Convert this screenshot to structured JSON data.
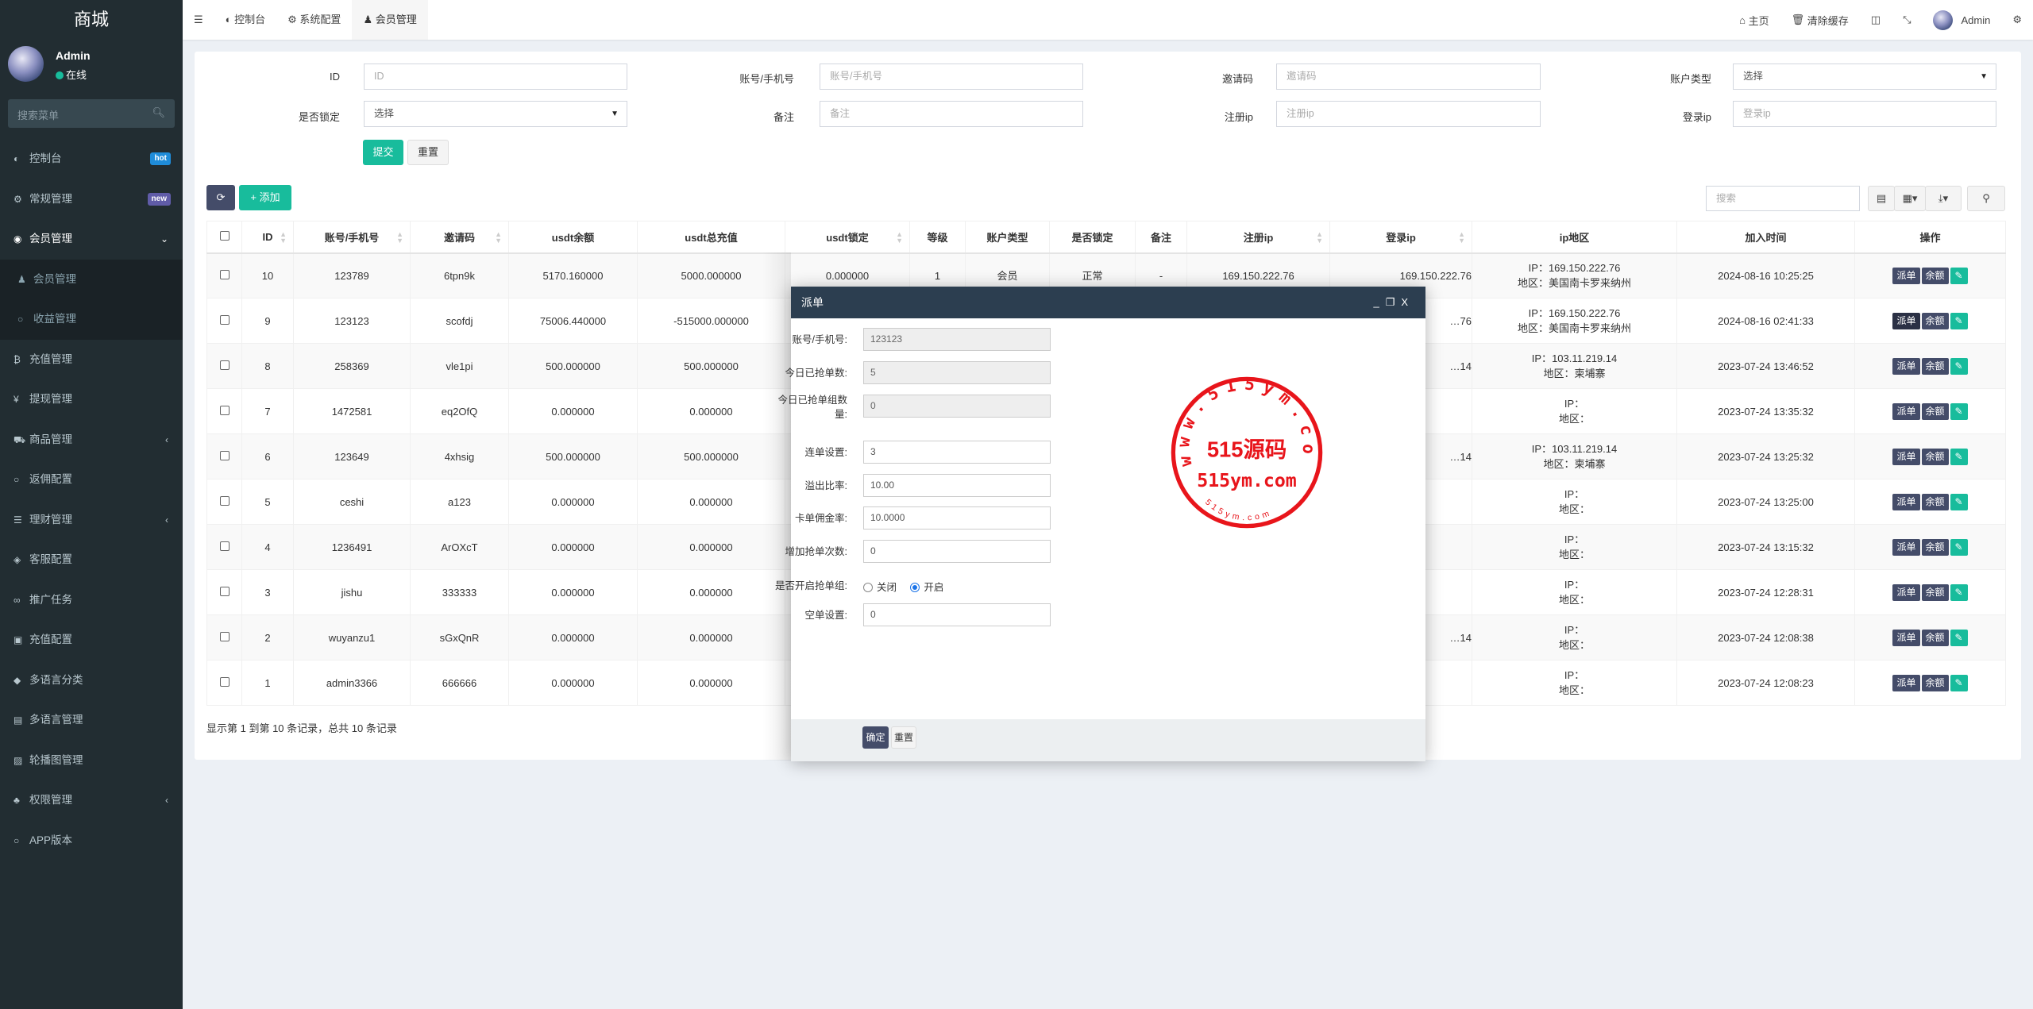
{
  "sidebar": {
    "logo": "商城",
    "user": {
      "name": "Admin",
      "status": "在线"
    },
    "search_placeholder": "搜索菜单",
    "items": [
      {
        "label": "控制台",
        "icon": "dashboard-icon",
        "badge": "hot",
        "badge_color": "#1f8cd9"
      },
      {
        "label": "常规管理",
        "icon": "cogs-icon",
        "badge": "new",
        "badge_color": "#605ca8"
      },
      {
        "label": "会员管理",
        "icon": "user-circle-icon",
        "open": true
      },
      {
        "label": "会员管理",
        "icon": "user-icon",
        "active": true,
        "sub": true
      },
      {
        "label": "收益管理",
        "icon": "circle-icon",
        "sub": true
      },
      {
        "label": "充值管理",
        "icon": "bitcoin-icon"
      },
      {
        "label": "提现管理",
        "icon": "yen-icon"
      },
      {
        "label": "商品管理",
        "icon": "cart-icon",
        "arrow": true
      },
      {
        "label": "返佣配置",
        "icon": "circle-icon"
      },
      {
        "label": "理财管理",
        "icon": "list-icon",
        "arrow": true
      },
      {
        "label": "客服配置",
        "icon": "telegram-icon"
      },
      {
        "label": "推广任务",
        "icon": "link-icon"
      },
      {
        "label": "充值配置",
        "icon": "cc-icon"
      },
      {
        "label": "多语言分类",
        "icon": "tag-icon"
      },
      {
        "label": "多语言管理",
        "icon": "language-icon"
      },
      {
        "label": "轮播图管理",
        "icon": "image-icon"
      },
      {
        "label": "权限管理",
        "icon": "group-icon",
        "arrow": true
      },
      {
        "label": "APP版本",
        "icon": "circle-icon"
      }
    ]
  },
  "header": {
    "tabs": [
      {
        "label": "控制台",
        "icon": "dashboard-icon"
      },
      {
        "label": "系统配置",
        "icon": "gear-icon"
      },
      {
        "label": "会员管理",
        "icon": "user-icon",
        "active": true
      }
    ],
    "home": "主页",
    "clear_cache": "清除缓存",
    "user": "Admin"
  },
  "filters": {
    "id": {
      "label": "ID",
      "placeholder": "ID"
    },
    "account": {
      "label": "账号/手机号",
      "placeholder": "账号/手机号"
    },
    "invite": {
      "label": "邀请码",
      "placeholder": "邀请码"
    },
    "acct_type": {
      "label": "账户类型",
      "value": "选择"
    },
    "locked": {
      "label": "是否锁定",
      "value": "选择"
    },
    "remark": {
      "label": "备注",
      "placeholder": "备注"
    },
    "reg_ip": {
      "label": "注册ip",
      "placeholder": "注册ip"
    },
    "login_ip": {
      "label": "登录ip",
      "placeholder": "登录ip"
    },
    "submit": "提交",
    "reset": "重置"
  },
  "toolbar": {
    "add": "添加",
    "search_placeholder": "搜索"
  },
  "table": {
    "columns": [
      "ID",
      "账号/手机号",
      "邀请码",
      "usdt余额",
      "usdt总充值",
      "usdt锁定",
      "等级",
      "账户类型",
      "是否锁定",
      "备注",
      "注册ip",
      "登录ip",
      "ip地区",
      "加入时间",
      "操作"
    ],
    "ip_prefix": "IP：",
    "region_prefix": "地区：",
    "actions": {
      "dispatch": "派单",
      "balance": "余额"
    },
    "rows": [
      {
        "id": "10",
        "account": "123789",
        "invite": "6tpn9k",
        "balance": "5170.160000",
        "recharge": "5000.000000",
        "locked_amt": "0.000000",
        "level": "1",
        "type": "会员",
        "locked": "正常",
        "remark": "-",
        "reg_ip": "169.150.222.76",
        "login_ip": "169.150.222.76",
        "ip": "169.150.222.76",
        "region": "美国南卡罗来纳州",
        "time": "2024-08-16 10:25:25"
      },
      {
        "id": "9",
        "account": "123123",
        "invite": "scofdj",
        "balance": "75006.440000",
        "recharge": "-515000.000000",
        "login_ip": "…76",
        "ip": "169.150.222.76",
        "region": "美国南卡罗来纳州",
        "time": "2024-08-16 02:41:33"
      },
      {
        "id": "8",
        "account": "258369",
        "invite": "vle1pi",
        "balance": "500.000000",
        "recharge": "500.000000",
        "login_ip": "…14",
        "ip": "103.11.219.14",
        "region": "柬埔寨",
        "time": "2023-07-24 13:46:52"
      },
      {
        "id": "7",
        "account": "1472581",
        "invite": "eq2OfQ",
        "balance": "0.000000",
        "recharge": "0.000000",
        "ip": "",
        "region": "",
        "time": "2023-07-24 13:35:32"
      },
      {
        "id": "6",
        "account": "123649",
        "invite": "4xhsig",
        "balance": "500.000000",
        "recharge": "500.000000",
        "login_ip": "…14",
        "ip": "103.11.219.14",
        "region": "柬埔寨",
        "time": "2023-07-24 13:25:32"
      },
      {
        "id": "5",
        "account": "ceshi",
        "invite": "a123",
        "balance": "0.000000",
        "recharge": "0.000000",
        "ip": "",
        "region": "",
        "time": "2023-07-24 13:25:00"
      },
      {
        "id": "4",
        "account": "1236491",
        "invite": "ArOXcT",
        "balance": "0.000000",
        "recharge": "0.000000",
        "ip": "",
        "region": "",
        "time": "2023-07-24 13:15:32"
      },
      {
        "id": "3",
        "account": "jishu",
        "invite": "333333",
        "balance": "0.000000",
        "recharge": "0.000000",
        "ip": "",
        "region": "",
        "time": "2023-07-24 12:28:31"
      },
      {
        "id": "2",
        "account": "wuyanzu1",
        "invite": "sGxQnR",
        "balance": "0.000000",
        "recharge": "0.000000",
        "login_ip": "…14",
        "ip": "",
        "region": "",
        "time": "2023-07-24 12:08:38"
      },
      {
        "id": "1",
        "account": "admin3366",
        "invite": "666666",
        "balance": "0.000000",
        "recharge": "0.000000",
        "ip": "",
        "region": "",
        "time": "2023-07-24 12:08:23"
      }
    ],
    "footer": "显示第 1 到第 10 条记录，总共 10 条记录"
  },
  "modal": {
    "title": "派单",
    "fields": [
      {
        "label": "账号/手机号:",
        "value": "123123",
        "readonly": true
      },
      {
        "label": "今日已抢单数:",
        "value": "5",
        "readonly": true
      },
      {
        "label": "今日已抢单组数量:",
        "value": "0",
        "readonly": true
      },
      {
        "label": "连单设置:",
        "value": "3"
      },
      {
        "label": "溢出比率:",
        "value": "10.00"
      },
      {
        "label": "卡单佣金率:",
        "value": "10.0000"
      },
      {
        "label": "增加抢单次数:",
        "value": "0"
      }
    ],
    "group_toggle": {
      "label": "是否开启抢单组:",
      "off": "关闭",
      "on": "开启",
      "selected": "on"
    },
    "empty": {
      "label": "空单设置:",
      "value": "0"
    },
    "confirm": "确定",
    "reset": "重置"
  },
  "watermark": {
    "ring_top": "www.515ym.com",
    "center": "515源码",
    "url": "515ym.com",
    "ring_bottom": "515ym.com",
    "color": "#e8151b"
  },
  "colors": {
    "sidebar": "#222d32",
    "active": "#4e6fdc",
    "primary": "#444c69",
    "success": "#18bc9c",
    "modal_header": "#2c3e50"
  }
}
